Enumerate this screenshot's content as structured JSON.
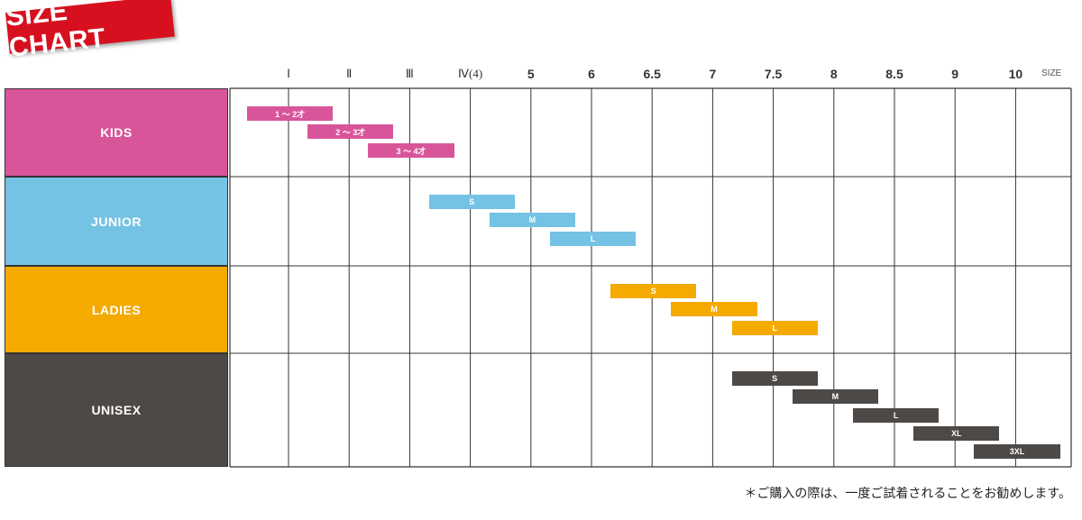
{
  "header": {
    "title": "SIZE CHART",
    "size_unit": "SIZE"
  },
  "footnote": "＊ご購入の際は、一度ご試着されることをお勧めします。",
  "chart_data": {
    "type": "range-bar",
    "columns": [
      "Ⅰ",
      "Ⅱ",
      "Ⅲ",
      "Ⅳ(4)",
      "5",
      "6",
      "6.5",
      "7",
      "7.5",
      "8",
      "8.5",
      "9",
      "10"
    ],
    "categories": [
      {
        "name": "KIDS",
        "color": "#d9559a",
        "bars": [
          {
            "label": "1 ～ 2才",
            "from": 0.0,
            "to": 1.0
          },
          {
            "label": "2 ～ 3才",
            "from": 1.0,
            "to": 2.0
          },
          {
            "label": "3 ～ 4才",
            "from": 2.0,
            "to": 3.0
          }
        ]
      },
      {
        "name": "JUNIOR",
        "color": "#74c2e4",
        "bars": [
          {
            "label": "S",
            "from": 3.0,
            "to": 4.0
          },
          {
            "label": "M",
            "from": 4.0,
            "to": 5.0
          },
          {
            "label": "L",
            "from": 5.0,
            "to": 6.0
          }
        ]
      },
      {
        "name": "LADIES",
        "color": "#f4aa00",
        "bars": [
          {
            "label": "S",
            "from": 6.0,
            "to": 7.0
          },
          {
            "label": "M",
            "from": 7.0,
            "to": 8.0
          },
          {
            "label": "L",
            "from": 8.0,
            "to": 9.0
          }
        ]
      },
      {
        "name": "UNISEX",
        "color": "#4d4947",
        "bars": [
          {
            "label": "S",
            "from": 8.0,
            "to": 9.0
          },
          {
            "label": "M",
            "from": 9.0,
            "to": 10.0
          },
          {
            "label": "L",
            "from": 10.0,
            "to": 11.0
          },
          {
            "label": "XL",
            "from": 11.0,
            "to": 12.0
          },
          {
            "label": "3XL",
            "from": 12.0,
            "to": 13.0
          }
        ]
      }
    ]
  }
}
